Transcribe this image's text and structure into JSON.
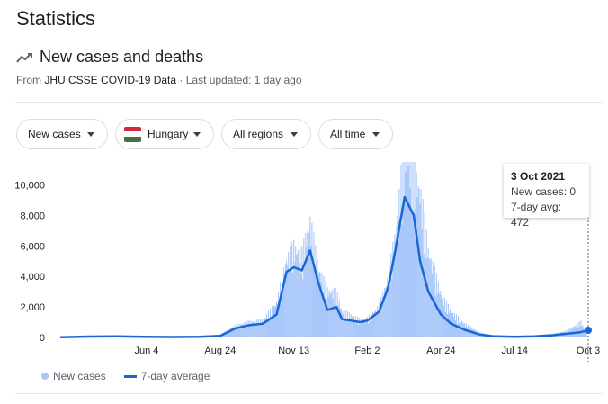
{
  "header": {
    "title": "Statistics"
  },
  "section": {
    "title": "New cases and deaths",
    "source_prefix": "From ",
    "source_link": "JHU CSSE COVID-19 Data",
    "updated": " · Last updated: 1 day ago"
  },
  "filters": {
    "metric": "New cases",
    "country": "Hungary",
    "region": "All regions",
    "time": "All time"
  },
  "legend": {
    "bars": "New cases",
    "line": "7-day average"
  },
  "tooltip": {
    "date": "3 Oct 2021",
    "new_cases": "New cases: 0",
    "avg": "7-day avg: 472"
  },
  "colors": {
    "bar": "#a8c7fa",
    "line": "#1967d2",
    "flag_red": "#cd2a3e",
    "flag_white": "#ffffff",
    "flag_green": "#436f4d"
  },
  "chart_data": {
    "type": "bar",
    "ytick_labels": [
      "0",
      "2,000",
      "4,000",
      "6,000",
      "8,000",
      "10,000"
    ],
    "yticks": [
      0,
      2000,
      4000,
      6000,
      8000,
      10000
    ],
    "ylim": [
      0,
      11500
    ],
    "xtick_labels": [
      "Jun 4",
      "Aug 24",
      "Nov 13",
      "Feb 2",
      "Apr 24",
      "Jul 14",
      "Oct 3"
    ],
    "xticks": [
      "2020-06-04",
      "2020-08-24",
      "2020-11-13",
      "2021-02-02",
      "2021-04-24",
      "2021-07-14",
      "2021-10-03"
    ],
    "x_range": [
      "2020-03-01",
      "2021-10-03"
    ],
    "series": [
      {
        "name": "New cases",
        "type": "bar",
        "x": [
          "2020-03-01",
          "2020-04-01",
          "2020-05-01",
          "2020-06-01",
          "2020-07-01",
          "2020-08-01",
          "2020-08-24",
          "2020-09-10",
          "2020-09-25",
          "2020-10-10",
          "2020-10-25",
          "2020-11-05",
          "2020-11-13",
          "2020-11-22",
          "2020-12-01",
          "2020-12-10",
          "2020-12-20",
          "2020-12-30",
          "2021-01-05",
          "2021-01-15",
          "2021-01-25",
          "2021-02-02",
          "2021-02-15",
          "2021-02-25",
          "2021-03-05",
          "2021-03-15",
          "2021-03-25",
          "2021-04-01",
          "2021-04-10",
          "2021-04-24",
          "2021-05-05",
          "2021-05-20",
          "2021-06-05",
          "2021-06-20",
          "2021-07-14",
          "2021-08-05",
          "2021-08-25",
          "2021-09-10",
          "2021-09-25",
          "2021-10-03"
        ],
        "values": [
          20,
          80,
          90,
          60,
          40,
          50,
          150,
          700,
          900,
          1000,
          2000,
          4500,
          5200,
          4800,
          6700,
          4000,
          2700,
          2600,
          1500,
          1300,
          1000,
          1100,
          1800,
          3500,
          6000,
          11200,
          9500,
          8500,
          5000,
          2500,
          1500,
          800,
          300,
          100,
          50,
          100,
          200,
          400,
          900,
          0
        ]
      },
      {
        "name": "7-day average",
        "type": "line",
        "x": [
          "2020-03-01",
          "2020-04-01",
          "2020-05-01",
          "2020-06-01",
          "2020-07-01",
          "2020-08-01",
          "2020-08-24",
          "2020-09-10",
          "2020-09-25",
          "2020-10-10",
          "2020-10-25",
          "2020-11-05",
          "2020-11-13",
          "2020-11-22",
          "2020-12-01",
          "2020-12-10",
          "2020-12-20",
          "2020-12-30",
          "2021-01-05",
          "2021-01-15",
          "2021-01-25",
          "2021-02-02",
          "2021-02-15",
          "2021-02-25",
          "2021-03-05",
          "2021-03-15",
          "2021-03-25",
          "2021-04-01",
          "2021-04-10",
          "2021-04-24",
          "2021-05-05",
          "2021-05-20",
          "2021-06-05",
          "2021-06-20",
          "2021-07-14",
          "2021-08-05",
          "2021-08-25",
          "2021-09-10",
          "2021-09-25",
          "2021-10-03"
        ],
        "values": [
          10,
          60,
          70,
          40,
          30,
          40,
          100,
          600,
          800,
          900,
          1500,
          4300,
          4600,
          4400,
          5700,
          3600,
          1800,
          2000,
          1200,
          1100,
          1000,
          1100,
          1700,
          3300,
          5800,
          9200,
          8000,
          5000,
          3000,
          1500,
          900,
          500,
          200,
          80,
          50,
          70,
          150,
          250,
          350,
          472
        ]
      }
    ]
  }
}
